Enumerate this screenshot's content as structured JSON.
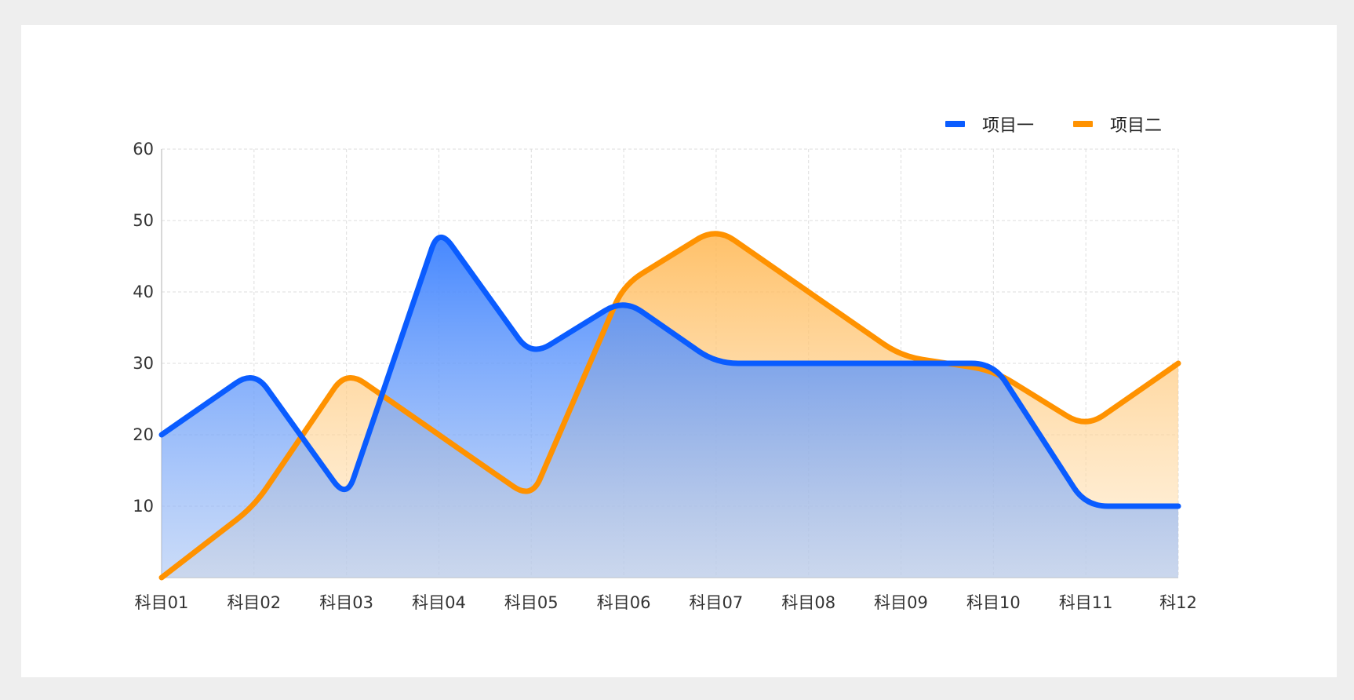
{
  "chart_data": {
    "type": "area",
    "title": "",
    "xlabel": "",
    "ylabel": "",
    "categories": [
      "科目01",
      "科目02",
      "科目03",
      "科目04",
      "科目05",
      "科目06",
      "科目07",
      "科目08",
      "科目09",
      "科目10",
      "科目11",
      "科12"
    ],
    "y_ticks": [
      10,
      20,
      30,
      40,
      50,
      60
    ],
    "ylim": [
      0,
      60
    ],
    "grid": true,
    "legend_position": "top-right",
    "series": [
      {
        "name": "项目一",
        "color": "#0a5cff",
        "values": [
          20,
          29,
          11,
          49,
          31,
          39,
          30,
          30,
          30,
          30,
          10,
          10
        ]
      },
      {
        "name": "项目二",
        "color": "#ff9200",
        "values": [
          0,
          10,
          29,
          20,
          11,
          41,
          49,
          40,
          31,
          29,
          21,
          30
        ]
      }
    ]
  }
}
